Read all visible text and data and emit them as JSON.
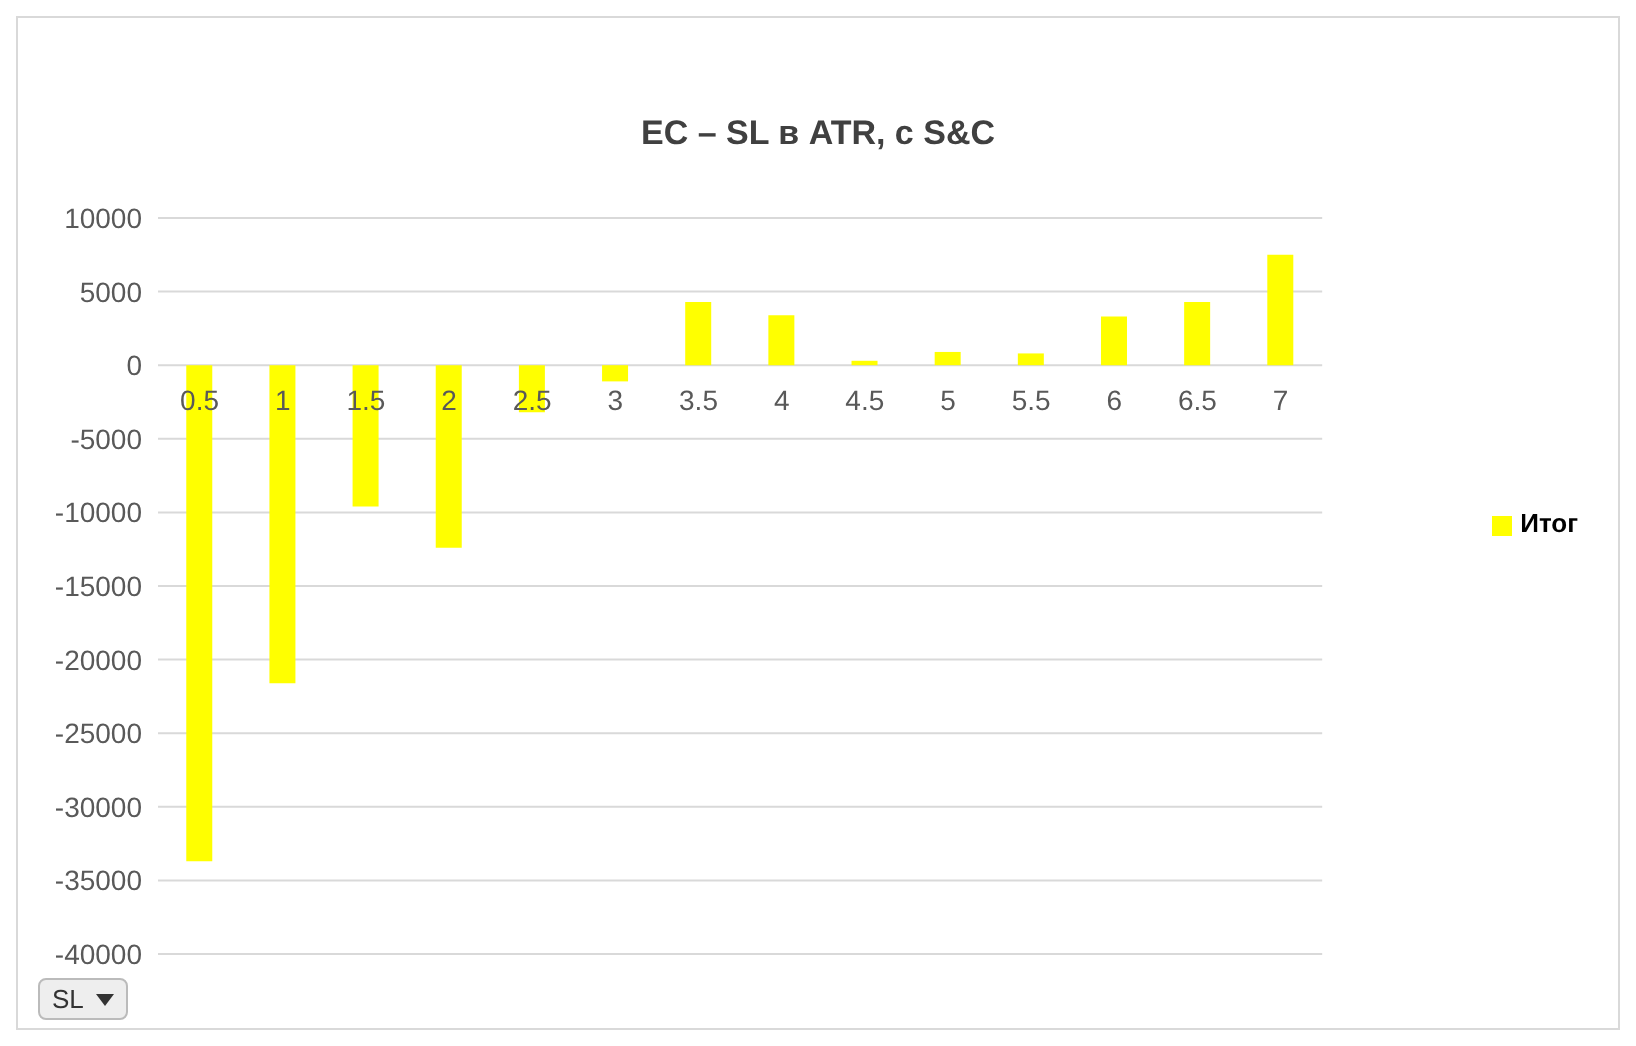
{
  "chart_data": {
    "type": "bar",
    "title": "EC – SL в ATR, с S&C",
    "categories": [
      "0.5",
      "1",
      "1.5",
      "2",
      "2.5",
      "3",
      "3.5",
      "4",
      "4.5",
      "5",
      "5.5",
      "6",
      "6.5",
      "7"
    ],
    "series": [
      {
        "name": "Итог",
        "color": "#ffff00",
        "values": [
          -33700,
          -21600,
          -9600,
          -12400,
          -3200,
          -1100,
          4300,
          3400,
          300,
          900,
          800,
          3300,
          4300,
          7500
        ]
      }
    ],
    "ylim": [
      -40000,
      10000
    ],
    "yticks": [
      -40000,
      -35000,
      -30000,
      -25000,
      -20000,
      -15000,
      -10000,
      -5000,
      0,
      5000,
      10000
    ],
    "grid": "y",
    "legend": "right",
    "annotations": [
      "SL"
    ]
  }
}
